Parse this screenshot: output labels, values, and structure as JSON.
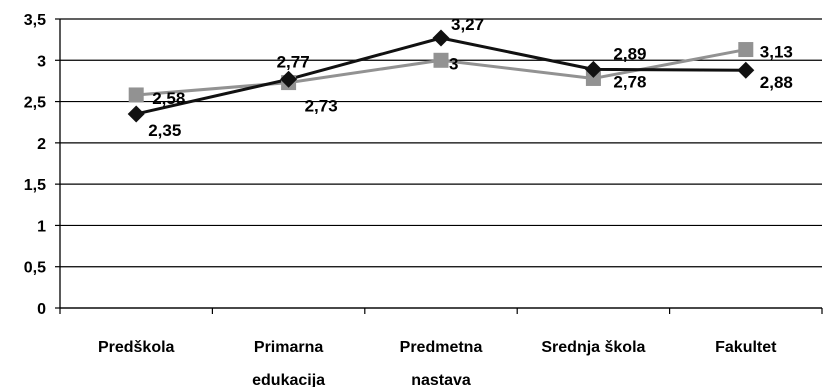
{
  "chart_data": {
    "type": "line",
    "categories": [
      [
        "Predškola"
      ],
      [
        "Primarna",
        "edukacija"
      ],
      [
        "Predmetna",
        "nastava"
      ],
      [
        "Srednja škola"
      ],
      [
        "Fakultet"
      ]
    ],
    "y_ticks": [
      "0",
      "0,5",
      "1",
      "1,5",
      "2",
      "2,5",
      "3",
      "3,5"
    ],
    "ylim": [
      0,
      3.5
    ],
    "grid": true,
    "legend": "none",
    "series": [
      {
        "values": [
          2.35,
          2.77,
          3.27,
          2.89,
          2.88
        ],
        "labels": [
          "2,35",
          "2,77",
          "3,27",
          "2,89",
          "2,88"
        ],
        "color": "#111111",
        "marker": "diamond"
      },
      {
        "values": [
          2.58,
          2.73,
          3.0,
          2.78,
          3.13
        ],
        "labels": [
          "2,58",
          "2,73",
          "3",
          "2,78",
          "3,13"
        ],
        "color": "#929292",
        "marker": "square"
      }
    ]
  }
}
